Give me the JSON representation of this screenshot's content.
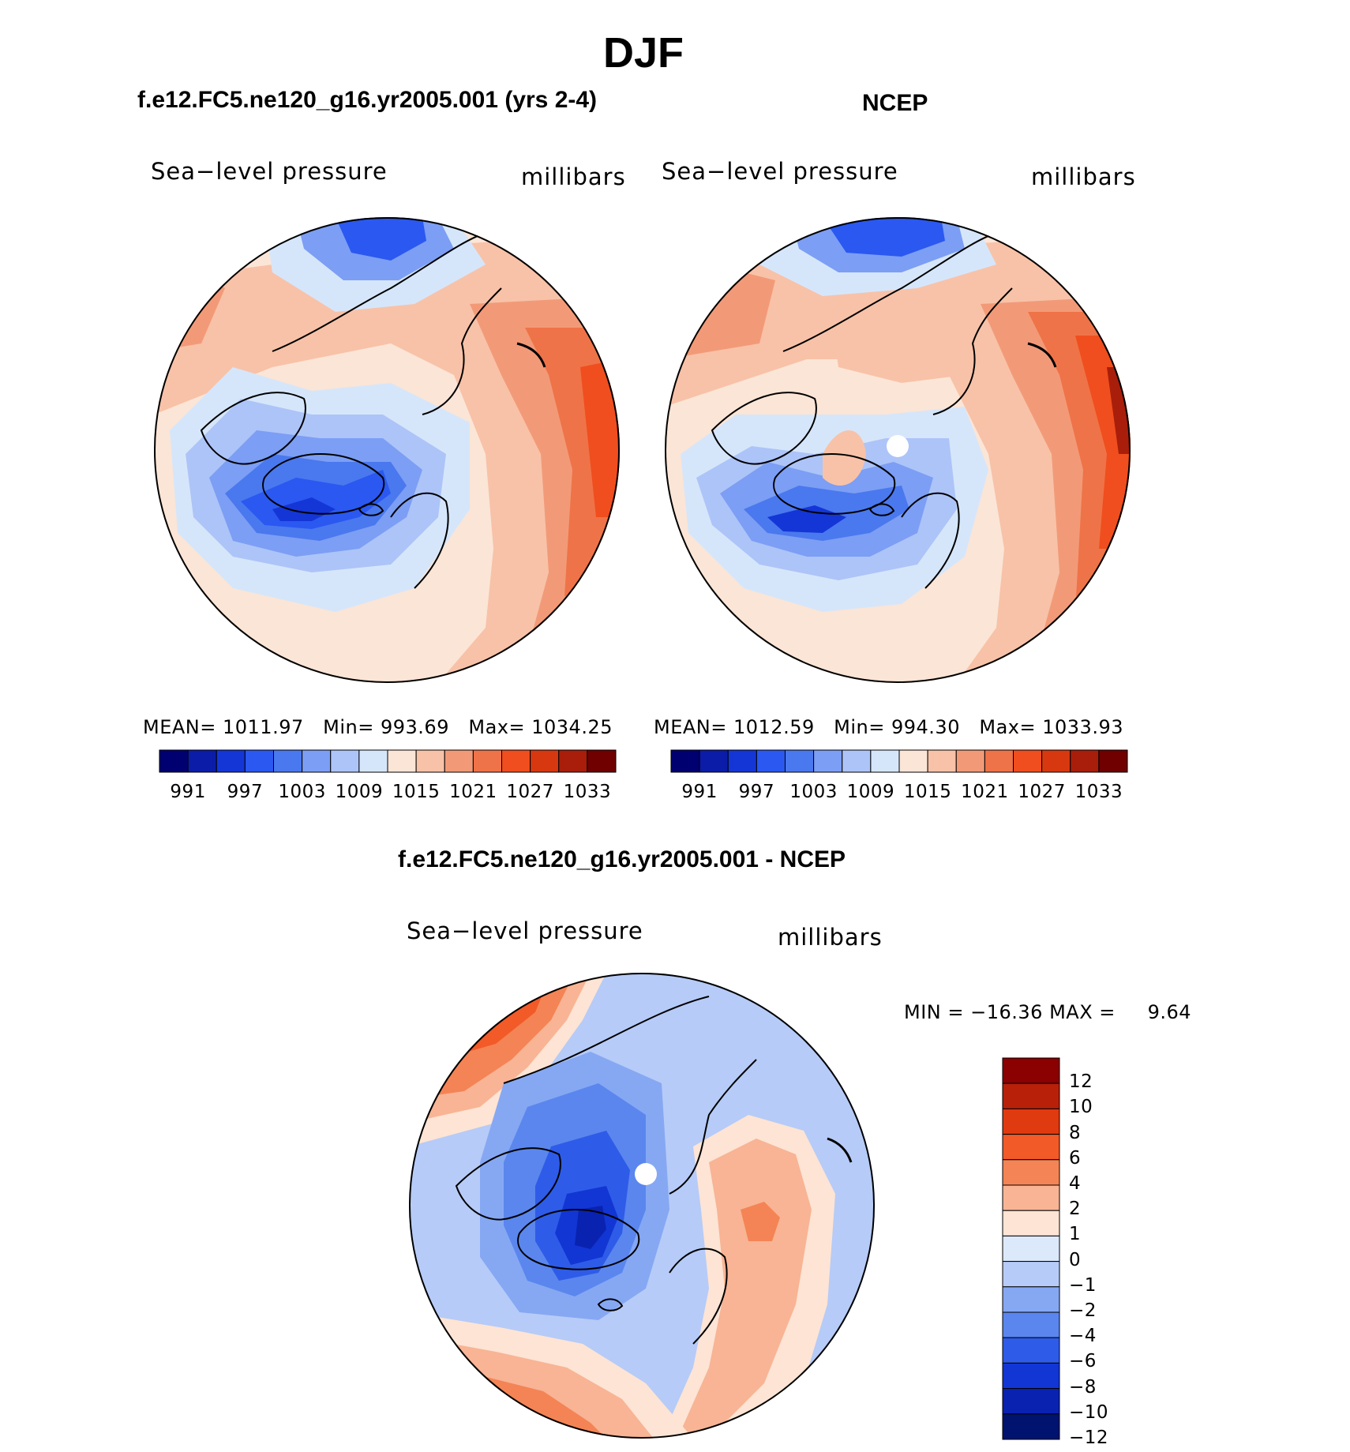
{
  "figure": {
    "title": "DJF"
  },
  "chart_data": [
    {
      "type": "contour-map",
      "projection": "north-polar-stereographic",
      "title": "f.e12.FC5.ne120_g16.yr2005.001 (yrs 2-4)",
      "left_label": "Sea−level pressure",
      "right_label": "millibars",
      "stats": {
        "mean_label": "MEAN=",
        "mean": "1011.97",
        "min_label": "Min=",
        "min": "993.69",
        "max_label": "Max=",
        "max": "1034.25"
      },
      "colorbar": {
        "colors": [
          "#000070",
          "#0a1ca8",
          "#1436d6",
          "#2a58f0",
          "#4a78ee",
          "#7c9ef4",
          "#adc4f8",
          "#d6e6fa",
          "#fbe5d6",
          "#f8c2a8",
          "#f29a78",
          "#ef7348",
          "#f04e1e",
          "#d83810",
          "#a81e0a",
          "#700000"
        ],
        "tick_labels": [
          "991",
          "997",
          "1003",
          "1009",
          "1015",
          "1021",
          "1027",
          "1033"
        ]
      }
    },
    {
      "type": "contour-map",
      "projection": "north-polar-stereographic",
      "title": "NCEP",
      "left_label": "Sea−level pressure",
      "right_label": "millibars",
      "stats": {
        "mean_label": "MEAN=",
        "mean": "1012.59",
        "min_label": "Min=",
        "min": "994.30",
        "max_label": "Max=",
        "max": "1033.93"
      },
      "colorbar": {
        "colors": [
          "#000070",
          "#0a1ca8",
          "#1436d6",
          "#2a58f0",
          "#4a78ee",
          "#7c9ef4",
          "#adc4f8",
          "#d6e6fa",
          "#fbe5d6",
          "#f8c2a8",
          "#f29a78",
          "#ef7348",
          "#f04e1e",
          "#d83810",
          "#a81e0a",
          "#700000"
        ],
        "tick_labels": [
          "991",
          "997",
          "1003",
          "1009",
          "1015",
          "1021",
          "1027",
          "1033"
        ]
      }
    },
    {
      "type": "contour-map",
      "projection": "north-polar-stereographic",
      "title": "f.e12.FC5.ne120_g16.yr2005.001 - NCEP",
      "left_label": "Sea−level pressure",
      "right_label": "millibars",
      "stats": {
        "min_label": "MIN =",
        "min": "−16.36",
        "max_label": "MAX =",
        "max": "9.64"
      },
      "colorbar": {
        "colors_top_to_bottom": [
          "#8b0000",
          "#b8200a",
          "#e03a10",
          "#f25a28",
          "#f48455",
          "#f8b495",
          "#fde4d4",
          "#dce9fb",
          "#b6cbf7",
          "#86a8f3",
          "#5a86ee",
          "#2e5ce8",
          "#1236d4",
          "#0a22b0",
          "#00136e"
        ],
        "tick_labels_top_to_bottom": [
          "12",
          "10",
          "8",
          "6",
          "4",
          "2",
          "1",
          "0",
          "−1",
          "−2",
          "−4",
          "−6",
          "−8",
          "−10",
          "−12"
        ]
      }
    }
  ]
}
